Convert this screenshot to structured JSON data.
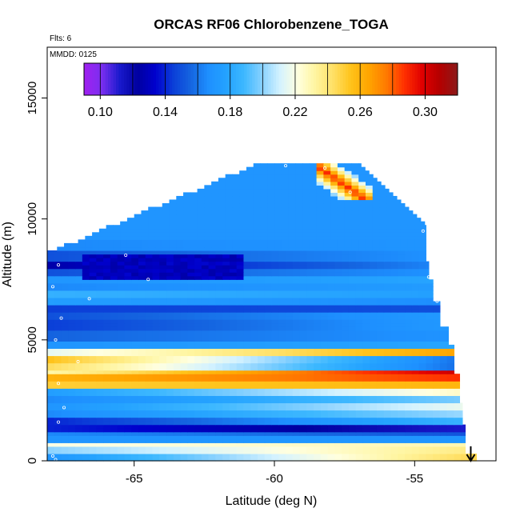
{
  "chart_data": {
    "type": "heatmap",
    "title": "ORCAS RF06 Chlorobenzene_TOGA",
    "subtitle_flights": "Flts: 6",
    "subtitle_date": "MMDD: 0125",
    "xlabel": "Latitude (deg N)",
    "ylabel": "Altitude (m)",
    "xlim": [
      -68.1,
      -52.1
    ],
    "ylim": [
      0,
      17100
    ],
    "x_ticks": [
      -65,
      -60,
      -55
    ],
    "x_tick_labels": [
      "-65",
      "-60",
      "-55"
    ],
    "y_ticks": [
      0,
      5000,
      10000,
      15000
    ],
    "y_tick_labels": [
      "0",
      "5000",
      "10000",
      "15000"
    ],
    "colorbar": {
      "min": 0.09,
      "max": 0.32,
      "ticks": [
        0.1,
        0.14,
        0.18,
        0.22,
        0.26,
        0.3
      ],
      "tick_labels": [
        "0.10",
        "0.14",
        "0.18",
        "0.22",
        "0.26",
        "0.30"
      ],
      "colors": [
        "#a020f0",
        "#7b2ff0",
        "#1a1acd",
        "#0000a0",
        "#0000cd",
        "#0b3ed8",
        "#1565e0",
        "#1e90ff",
        "#24a2ff",
        "#3db8ff",
        "#87d1ff",
        "#d3f2ff",
        "#ffffe0",
        "#fff5a0",
        "#ffe066",
        "#ffc31a",
        "#ffa500",
        "#ff7a00",
        "#ff3000",
        "#e00000",
        "#b40000",
        "#8b1a1a"
      ]
    },
    "profile_bands": [
      {
        "alt_low": 0,
        "alt_high": 300,
        "value_south": 0.17,
        "value_north": 0.25
      },
      {
        "alt_low": 300,
        "alt_high": 550,
        "value_south": 0.2,
        "value_north": 0.24
      },
      {
        "alt_low": 550,
        "alt_high": 800,
        "value_south": 0.22,
        "value_north": 0.23
      },
      {
        "alt_low": 800,
        "alt_high": 1000,
        "value_south": 0.17,
        "value_north": 0.17
      },
      {
        "alt_low": 1000,
        "alt_high": 1250,
        "value_south": 0.165,
        "value_north": 0.15
      },
      {
        "alt_low": 1250,
        "alt_high": 1550,
        "value_south": 0.14,
        "value_north": 0.11
      },
      {
        "alt_low": 1550,
        "alt_high": 1800,
        "value_south": 0.14,
        "value_north": 0.19
      },
      {
        "alt_low": 1800,
        "alt_high": 2100,
        "value_south": 0.165,
        "value_north": 0.205
      },
      {
        "alt_low": 2100,
        "alt_high": 2350,
        "value_south": 0.17,
        "value_north": 0.22
      },
      {
        "alt_low": 2350,
        "alt_high": 2650,
        "value_south": 0.165,
        "value_north": 0.2
      },
      {
        "alt_low": 2650,
        "alt_high": 2950,
        "value_south": 0.175,
        "value_north": 0.23
      },
      {
        "alt_low": 2950,
        "alt_high": 3250,
        "value_south": 0.25,
        "value_north": 0.26
      },
      {
        "alt_low": 3250,
        "alt_high": 3550,
        "value_south": 0.26,
        "value_north": 0.29
      },
      {
        "alt_low": 3550,
        "alt_high": 3800,
        "value_south": 0.23,
        "value_north": 0.31
      },
      {
        "alt_low": 3800,
        "alt_high": 4100,
        "value_south": 0.245,
        "value_north": 0.15
      },
      {
        "alt_low": 4100,
        "alt_high": 4400,
        "value_south": 0.255,
        "value_north": 0.15
      },
      {
        "alt_low": 4400,
        "alt_high": 4700,
        "value_south": 0.215,
        "value_north": 0.27
      },
      {
        "alt_low": 4700,
        "alt_high": 5000,
        "value_south": 0.17,
        "value_north": 0.18
      },
      {
        "alt_low": 5000,
        "alt_high": 5400,
        "value_south": 0.155,
        "value_north": 0.17
      },
      {
        "alt_low": 5400,
        "alt_high": 5800,
        "value_south": 0.145,
        "value_north": 0.175
      },
      {
        "alt_low": 5800,
        "alt_high": 6200,
        "value_south": 0.15,
        "value_north": 0.175
      },
      {
        "alt_low": 6200,
        "alt_high": 6500,
        "value_south": 0.145,
        "value_north": 0.15
      },
      {
        "alt_low": 6500,
        "alt_high": 6800,
        "value_south": 0.175,
        "value_north": 0.165
      },
      {
        "alt_low": 6800,
        "alt_high": 7100,
        "value_south": 0.185,
        "value_north": 0.175
      },
      {
        "alt_low": 7100,
        "alt_high": 7400,
        "value_south": 0.165,
        "value_north": 0.175
      },
      {
        "alt_low": 7400,
        "alt_high": 7700,
        "value_south": 0.17,
        "value_north": 0.18
      },
      {
        "alt_low": 7700,
        "alt_high": 8000,
        "value_south": 0.15,
        "value_north": 0.17
      },
      {
        "alt_low": 8000,
        "alt_high": 8300,
        "value_south": 0.125,
        "value_north": 0.17
      },
      {
        "alt_low": 8300,
        "alt_high": 8700,
        "value_south": 0.15,
        "value_north": 0.17
      },
      {
        "alt_low": 8700,
        "alt_high": 9200,
        "value_south": 0.165,
        "value_north": 0.17
      },
      {
        "alt_low": 9200,
        "alt_high": 12400,
        "value_south": 0.17,
        "value_north": 0.17
      }
    ],
    "anomalies": [
      {
        "lat_from": -58.6,
        "lat_to": -56.5,
        "alt_from": 10800,
        "alt_to": 12300,
        "value": 0.29,
        "note": "high values along descending ridge"
      },
      {
        "lat_from": -66.8,
        "lat_to": -61.0,
        "alt_from": 7500,
        "alt_to": 8500,
        "value": 0.125,
        "note": "low-concentration layer"
      }
    ],
    "observation_points": [
      {
        "lat": -67.9,
        "alt": 200
      },
      {
        "lat": -67.8,
        "alt": 50
      },
      {
        "lat": -67.7,
        "alt": 1600
      },
      {
        "lat": -67.7,
        "alt": 3200
      },
      {
        "lat": -67.5,
        "alt": 2200
      },
      {
        "lat": -67.8,
        "alt": 5000
      },
      {
        "lat": -67.6,
        "alt": 5900
      },
      {
        "lat": -67.9,
        "alt": 7200
      },
      {
        "lat": -67.7,
        "alt": 8100
      },
      {
        "lat": -67.0,
        "alt": 4100
      },
      {
        "lat": -66.6,
        "alt": 6700
      },
      {
        "lat": -65.3,
        "alt": 8500
      },
      {
        "lat": -64.5,
        "alt": 7500
      },
      {
        "lat": -59.6,
        "alt": 12200
      },
      {
        "lat": -58.2,
        "alt": 12100
      },
      {
        "lat": -57.3,
        "alt": 11100
      },
      {
        "lat": -54.7,
        "alt": 9500
      },
      {
        "lat": -54.5,
        "alt": 7600
      },
      {
        "lat": -54.2,
        "alt": 6600
      },
      {
        "lat": -53.3,
        "alt": 2900
      },
      {
        "lat": -53.1,
        "alt": 1100
      }
    ],
    "flight_end_marker": {
      "lat": -53.0,
      "alt_from": 600,
      "alt_to": 0
    }
  }
}
